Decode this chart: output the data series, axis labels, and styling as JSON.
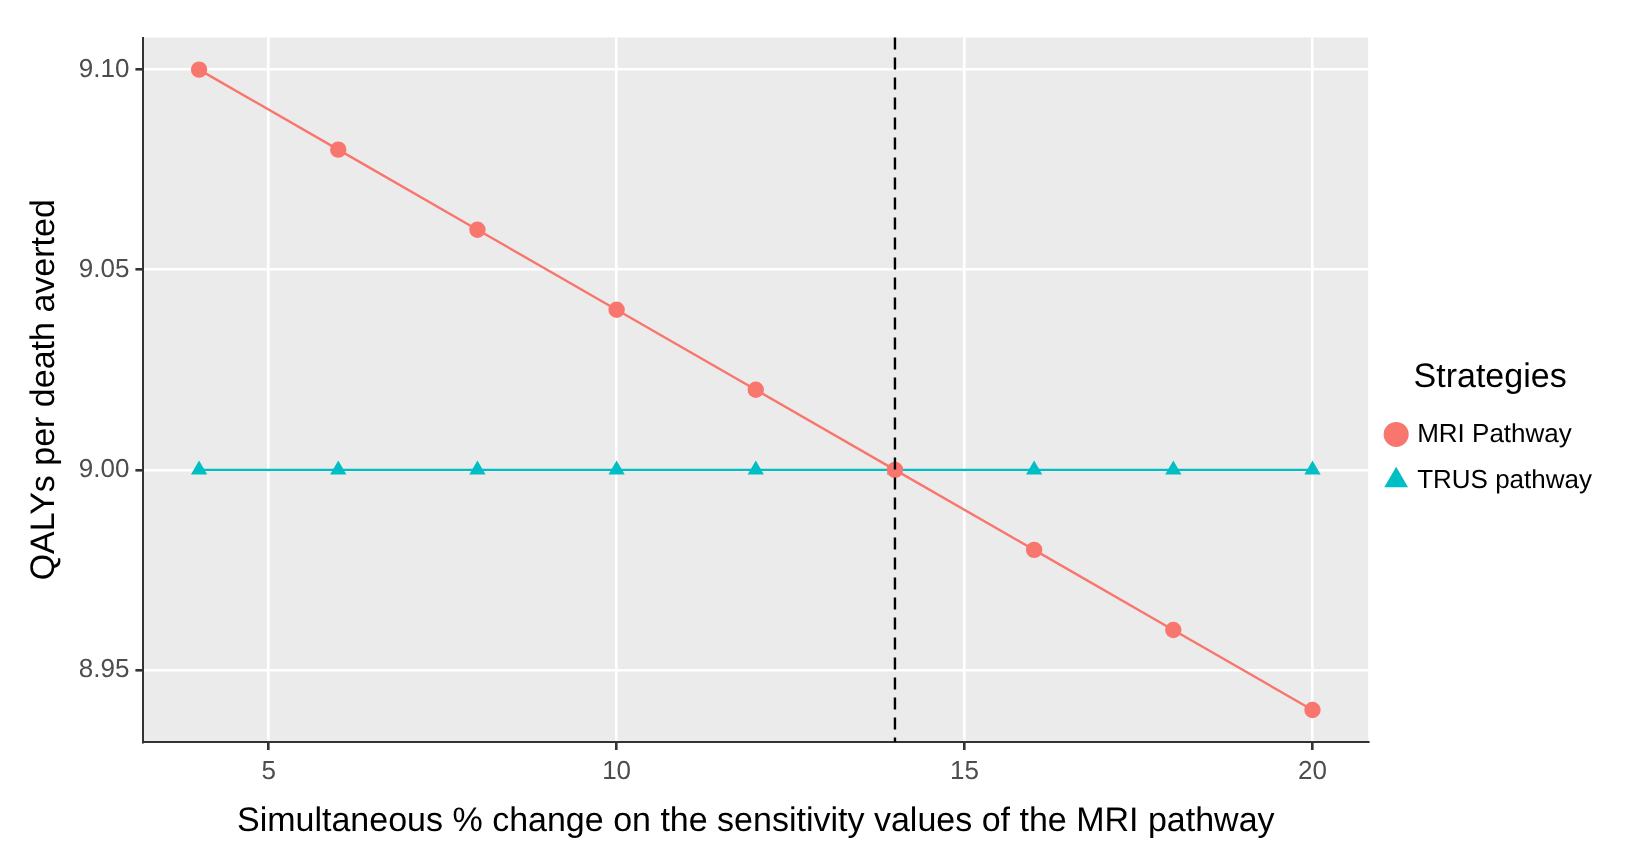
{
  "chart_data": {
    "type": "line",
    "xlabel": "Simultaneous % change on the sensitivity values of the MRI pathway",
    "ylabel": "QALYs per death averted",
    "legend_title": "Strategies",
    "legend": "right",
    "grid": true,
    "x": [
      4,
      6,
      8,
      10,
      12,
      14,
      16,
      18,
      20
    ],
    "series": [
      {
        "name": "MRI Pathway",
        "color": "#f8766d",
        "marker": "circle",
        "values": [
          9.1,
          9.08,
          9.06,
          9.04,
          9.02,
          9.0,
          8.98,
          8.96,
          8.94
        ]
      },
      {
        "name": "TRUS pathway",
        "color": "#00bfc4",
        "marker": "triangle",
        "values": [
          9.0,
          9.0,
          9.0,
          9.0,
          9.0,
          9.0,
          9.0,
          9.0,
          9.0
        ]
      }
    ],
    "xlim": [
      3.2,
      20.8
    ],
    "xticks": [
      5,
      10,
      15,
      20
    ],
    "ylim": [
      8.932,
      9.108
    ],
    "yticks": [
      {
        "value": 8.95,
        "label": "8.95"
      },
      {
        "value": 9,
        "label": "9.00"
      },
      {
        "value": 9.05,
        "label": "9.05"
      },
      {
        "value": 9.1,
        "label": "9.10"
      }
    ],
    "ref_lines": [
      {
        "axis": "x",
        "value": 14,
        "color": "#000000",
        "line_style": "dashed"
      }
    ]
  }
}
